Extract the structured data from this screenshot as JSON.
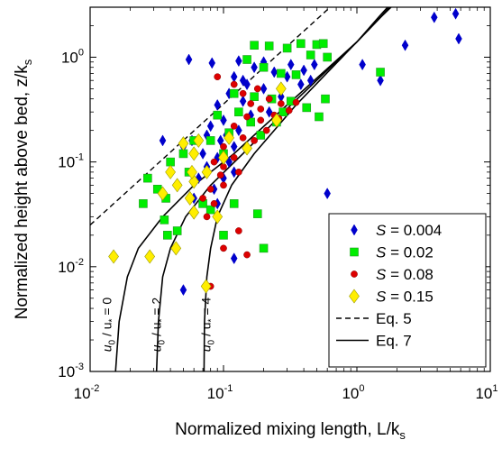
{
  "chart_data": {
    "type": "scatter",
    "x_scale": "log",
    "y_scale": "log",
    "xlim": [
      0.01,
      10
    ],
    "ylim": [
      0.001,
      3
    ],
    "xlabel": "Normalized mixing length, L/k",
    "xlabel_sub": "s",
    "ylabel": "Normalized height above bed, z/k",
    "ylabel_sub": "s",
    "x_ticks": [
      {
        "base": "10",
        "exp": "-2"
      },
      {
        "base": "10",
        "exp": "-1"
      },
      {
        "base": "10",
        "exp": "0"
      },
      {
        "base": "10",
        "exp": "1"
      }
    ],
    "y_ticks": [
      {
        "base": "10",
        "exp": "-3"
      },
      {
        "base": "10",
        "exp": "-2"
      },
      {
        "base": "10",
        "exp": "-1"
      },
      {
        "base": "10",
        "exp": "0"
      }
    ],
    "legend_position": "bottom-right",
    "series": [
      {
        "name_symbol": "S",
        "name_value": " = 0.004",
        "marker": "diamond-small",
        "color": "#0000cc",
        "points": [
          [
            0.055,
            0.95
          ],
          [
            0.082,
            0.88
          ],
          [
            0.13,
            0.92
          ],
          [
            0.17,
            0.8
          ],
          [
            0.24,
            0.72
          ],
          [
            0.32,
            0.85
          ],
          [
            0.4,
            0.75
          ],
          [
            0.48,
            0.85
          ],
          [
            0.12,
            0.65
          ],
          [
            0.15,
            0.55
          ],
          [
            0.2,
            0.5
          ],
          [
            0.27,
            0.42
          ],
          [
            0.38,
            0.55
          ],
          [
            0.11,
            0.45
          ],
          [
            0.09,
            0.35
          ],
          [
            0.14,
            0.38
          ],
          [
            0.1,
            0.25
          ],
          [
            0.08,
            0.22
          ],
          [
            0.16,
            0.28
          ],
          [
            0.13,
            0.2
          ],
          [
            0.22,
            0.3
          ],
          [
            0.105,
            0.18
          ],
          [
            0.12,
            0.14
          ],
          [
            0.035,
            0.16
          ],
          [
            0.05,
            0.14
          ],
          [
            0.07,
            0.12
          ],
          [
            0.09,
            0.11
          ],
          [
            0.075,
            0.09
          ],
          [
            0.11,
            0.1
          ],
          [
            0.065,
            0.07
          ],
          [
            0.085,
            0.055
          ],
          [
            0.1,
            0.07
          ],
          [
            0.12,
            0.08
          ],
          [
            0.06,
            0.045
          ],
          [
            0.09,
            0.04
          ],
          [
            0.05,
            0.006
          ],
          [
            0.12,
            0.012
          ],
          [
            0.6,
            0.05
          ],
          [
            1.1,
            0.85
          ],
          [
            1.5,
            0.6
          ],
          [
            2.3,
            1.3
          ],
          [
            3.8,
            2.4
          ],
          [
            5.5,
            2.6
          ],
          [
            5.8,
            1.5
          ],
          [
            0.45,
            0.6
          ],
          [
            0.3,
            0.65
          ],
          [
            0.2,
            0.9
          ],
          [
            0.14,
            0.6
          ],
          [
            0.095,
            0.16
          ],
          [
            0.075,
            0.18
          ],
          [
            0.058,
            0.16
          ]
        ]
      },
      {
        "name_symbol": "S",
        "name_value": " = 0.02",
        "marker": "square",
        "color": "#00ee00",
        "points": [
          [
            0.17,
            1.3
          ],
          [
            0.22,
            1.28
          ],
          [
            0.3,
            1.22
          ],
          [
            0.38,
            1.35
          ],
          [
            0.5,
            1.32
          ],
          [
            0.56,
            1.35
          ],
          [
            0.45,
            1.05
          ],
          [
            0.6,
            1.0
          ],
          [
            1.5,
            0.72
          ],
          [
            0.15,
            0.95
          ],
          [
            0.2,
            0.8
          ],
          [
            0.27,
            0.7
          ],
          [
            0.35,
            0.68
          ],
          [
            0.12,
            0.45
          ],
          [
            0.17,
            0.42
          ],
          [
            0.23,
            0.4
          ],
          [
            0.32,
            0.38
          ],
          [
            0.42,
            0.33
          ],
          [
            0.58,
            0.4
          ],
          [
            0.28,
            0.3
          ],
          [
            0.52,
            0.27
          ],
          [
            0.13,
            0.3
          ],
          [
            0.16,
            0.24
          ],
          [
            0.09,
            0.28
          ],
          [
            0.11,
            0.19
          ],
          [
            0.08,
            0.16
          ],
          [
            0.1,
            0.12
          ],
          [
            0.06,
            0.16
          ],
          [
            0.05,
            0.12
          ],
          [
            0.04,
            0.1
          ],
          [
            0.055,
            0.08
          ],
          [
            0.027,
            0.07
          ],
          [
            0.032,
            0.055
          ],
          [
            0.037,
            0.045
          ],
          [
            0.025,
            0.04
          ],
          [
            0.036,
            0.028
          ],
          [
            0.038,
            0.02
          ],
          [
            0.045,
            0.022
          ],
          [
            0.07,
            0.04
          ],
          [
            0.08,
            0.035
          ],
          [
            0.12,
            0.04
          ],
          [
            0.18,
            0.032
          ],
          [
            0.2,
            0.015
          ],
          [
            0.1,
            0.02
          ],
          [
            0.25,
            0.24
          ],
          [
            0.19,
            0.18
          ]
        ]
      },
      {
        "name_symbol": "S",
        "name_value": " = 0.08",
        "marker": "circle",
        "color": "#dd0000",
        "points": [
          [
            0.09,
            0.65
          ],
          [
            0.12,
            0.55
          ],
          [
            0.14,
            0.45
          ],
          [
            0.18,
            0.5
          ],
          [
            0.22,
            0.4
          ],
          [
            0.27,
            0.36
          ],
          [
            0.31,
            0.31
          ],
          [
            0.24,
            0.28
          ],
          [
            0.19,
            0.25
          ],
          [
            0.15,
            0.27
          ],
          [
            0.12,
            0.22
          ],
          [
            0.14,
            0.17
          ],
          [
            0.17,
            0.16
          ],
          [
            0.21,
            0.2
          ],
          [
            0.1,
            0.14
          ],
          [
            0.12,
            0.11
          ],
          [
            0.1,
            0.09
          ],
          [
            0.13,
            0.08
          ],
          [
            0.085,
            0.1
          ],
          [
            0.095,
            0.075
          ],
          [
            0.1,
            0.06
          ],
          [
            0.08,
            0.055
          ],
          [
            0.07,
            0.045
          ],
          [
            0.085,
            0.04
          ],
          [
            0.075,
            0.03
          ],
          [
            0.13,
            0.022
          ],
          [
            0.15,
            0.013
          ],
          [
            0.1,
            0.015
          ],
          [
            0.08,
            0.0065
          ],
          [
            0.19,
            0.32
          ],
          [
            0.26,
            0.26
          ],
          [
            0.16,
            0.36
          ],
          [
            0.35,
            0.37
          ]
        ]
      },
      {
        "name_symbol": "S",
        "name_value": " = 0.15",
        "marker": "diamond-large",
        "color": "#ffee00",
        "points": [
          [
            0.015,
            0.0125
          ],
          [
            0.028,
            0.0125
          ],
          [
            0.044,
            0.015
          ],
          [
            0.06,
            0.033
          ],
          [
            0.09,
            0.03
          ],
          [
            0.056,
            0.045
          ],
          [
            0.035,
            0.05
          ],
          [
            0.045,
            0.06
          ],
          [
            0.06,
            0.065
          ],
          [
            0.075,
            0.08
          ],
          [
            0.058,
            0.08
          ],
          [
            0.04,
            0.08
          ],
          [
            0.05,
            0.15
          ],
          [
            0.06,
            0.12
          ],
          [
            0.1,
            0.11
          ],
          [
            0.11,
            0.17
          ],
          [
            0.15,
            0.135
          ],
          [
            0.25,
            0.25
          ],
          [
            0.27,
            0.5
          ],
          [
            0.065,
            0.16
          ],
          [
            0.074,
            0.0065
          ]
        ]
      },
      {
        "name": "Eq. 5",
        "style": "dashed",
        "color": "#000000",
        "points": [
          [
            0.01,
            0.025
          ],
          [
            0.63,
            3.0
          ]
        ]
      },
      {
        "name": "Eq. 7",
        "style": "solid",
        "color": "#000000",
        "curves": [
          {
            "label_u": "u",
            "label_sub0": "0",
            "label_mid": " / u",
            "label_sub1": "*",
            "label_eq": " = ",
            "label_val": "0",
            "label_at": [
              0.0135,
              0.0028
            ],
            "u0_over_ustar": 0,
            "asymptote": 0.0148,
            "points": [
              [
                0.0155,
                0.001
              ],
              [
                0.0165,
                0.003
              ],
              [
                0.019,
                0.008
              ],
              [
                0.023,
                0.015
              ],
              [
                0.035,
                0.03
              ],
              [
                0.06,
                0.06
              ],
              [
                0.12,
                0.12
              ],
              [
                0.3,
                0.35
              ],
              [
                1.0,
                1.4
              ],
              [
                1.5,
                2.4
              ],
              [
                1.8,
                3.0
              ]
            ]
          },
          {
            "label_u": "u",
            "label_sub0": "0",
            "label_mid": " / u",
            "label_sub1": "*",
            "label_eq": " = ",
            "label_val": "2",
            "label_at": [
              0.032,
              0.0028
            ],
            "u0_over_ustar": 2,
            "asymptote": 0.031,
            "points": [
              [
                0.0315,
                0.001
              ],
              [
                0.0325,
                0.003
              ],
              [
                0.035,
                0.008
              ],
              [
                0.04,
                0.015
              ],
              [
                0.052,
                0.03
              ],
              [
                0.08,
                0.06
              ],
              [
                0.14,
                0.12
              ],
              [
                0.32,
                0.35
              ],
              [
                1.0,
                1.4
              ],
              [
                1.5,
                2.4
              ],
              [
                1.75,
                3.0
              ]
            ]
          },
          {
            "label_u": "u",
            "label_sub0": "0",
            "label_mid": " / u",
            "label_sub1": "*",
            "label_eq": " = ",
            "label_val": "4",
            "label_at": [
              0.075,
              0.0028
            ],
            "u0_over_ustar": 4,
            "asymptote": 0.071,
            "points": [
              [
                0.0715,
                0.001
              ],
              [
                0.072,
                0.003
              ],
              [
                0.075,
                0.008
              ],
              [
                0.08,
                0.015
              ],
              [
                0.09,
                0.03
              ],
              [
                0.115,
                0.06
              ],
              [
                0.17,
                0.12
              ],
              [
                0.35,
                0.35
              ],
              [
                1.0,
                1.4
              ],
              [
                1.45,
                2.4
              ],
              [
                1.7,
                3.0
              ]
            ]
          }
        ]
      }
    ]
  }
}
